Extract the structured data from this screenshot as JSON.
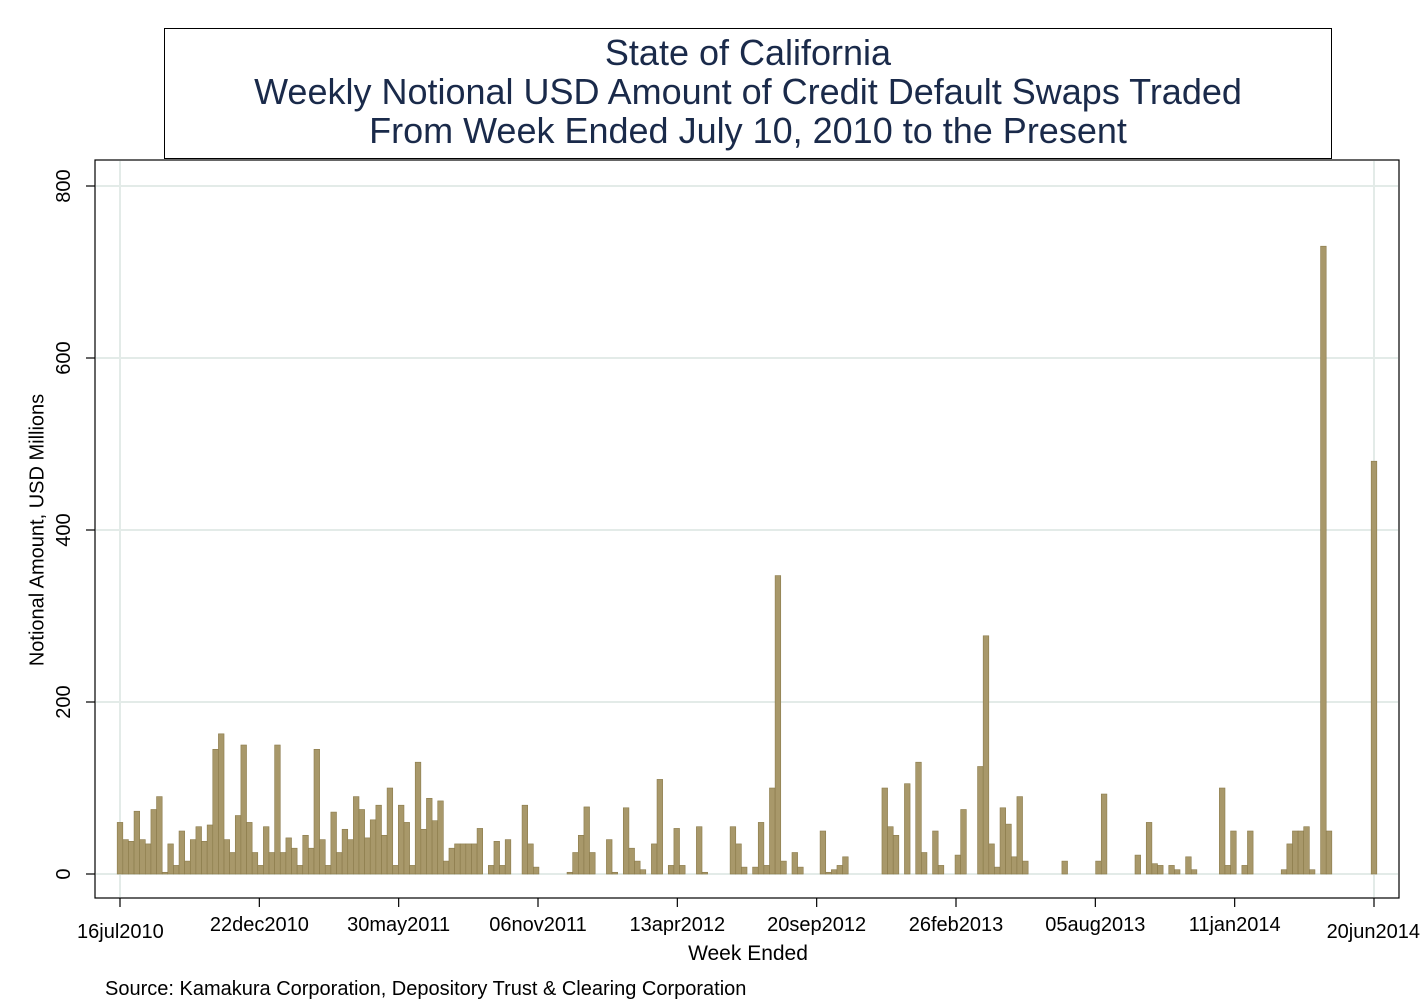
{
  "chart_data": {
    "type": "bar",
    "title": "State of California",
    "subtitle_lines": [
      "Weekly Notional USD Amount of Credit Default Swaps Traded",
      "From Week Ended July 10, 2010 to the Present"
    ],
    "xlabel": "Week Ended",
    "ylabel": "Notional Amount, USD Millions",
    "ylim": [
      0,
      800
    ],
    "yticks": [
      0,
      200,
      400,
      600,
      800
    ],
    "xtick_labels": [
      "16jul2010",
      "22dec2010",
      "30may2011",
      "06nov2011",
      "13apr2012",
      "20sep2012",
      "26feb2013",
      "05aug2013",
      "11jan2014",
      "20jun2014"
    ],
    "grid": true,
    "bar_color": "#a8986a",
    "bar_edge_color": "#8a7a4a",
    "values": [
      60,
      40,
      38,
      73,
      40,
      35,
      75,
      90,
      2,
      35,
      10,
      50,
      15,
      40,
      55,
      38,
      57,
      145,
      163,
      40,
      25,
      68,
      150,
      60,
      25,
      10,
      55,
      25,
      150,
      25,
      42,
      30,
      10,
      45,
      30,
      145,
      40,
      10,
      72,
      25,
      52,
      40,
      90,
      75,
      42,
      63,
      80,
      45,
      100,
      10,
      80,
      60,
      10,
      130,
      52,
      88,
      62,
      85,
      15,
      30,
      35,
      35,
      35,
      35,
      53,
      0,
      10,
      38,
      10,
      40,
      0,
      0,
      80,
      35,
      8,
      0,
      0,
      0,
      0,
      0,
      2,
      25,
      45,
      78,
      25,
      0,
      0,
      40,
      2,
      0,
      77,
      30,
      15,
      5,
      0,
      35,
      110,
      0,
      10,
      53,
      10,
      0,
      0,
      55,
      2,
      0,
      0,
      0,
      0,
      55,
      35,
      8,
      0,
      8,
      60,
      10,
      100,
      347,
      15,
      0,
      25,
      8,
      0,
      0,
      0,
      50,
      2,
      5,
      10,
      20,
      0,
      0,
      0,
      0,
      0,
      0,
      100,
      55,
      45,
      0,
      105,
      0,
      130,
      25,
      0,
      50,
      10,
      0,
      0,
      22,
      75,
      0,
      0,
      125,
      277,
      35,
      8,
      77,
      58,
      20,
      90,
      15,
      0,
      0,
      0,
      0,
      0,
      0,
      15,
      0,
      0,
      0,
      0,
      0,
      15,
      93,
      0,
      0,
      0,
      0,
      0,
      22,
      0,
      60,
      12,
      10,
      0,
      10,
      5,
      0,
      20,
      5,
      0,
      0,
      0,
      0,
      100,
      10,
      50,
      0,
      10,
      50,
      0,
      0,
      0,
      0,
      0,
      5,
      35,
      50,
      50,
      55,
      5,
      0,
      730,
      50,
      0,
      0,
      0,
      0,
      0,
      0,
      0,
      480
    ],
    "source": "Source: Kamakura Corporation, Depository Trust & Clearing Corporation"
  }
}
